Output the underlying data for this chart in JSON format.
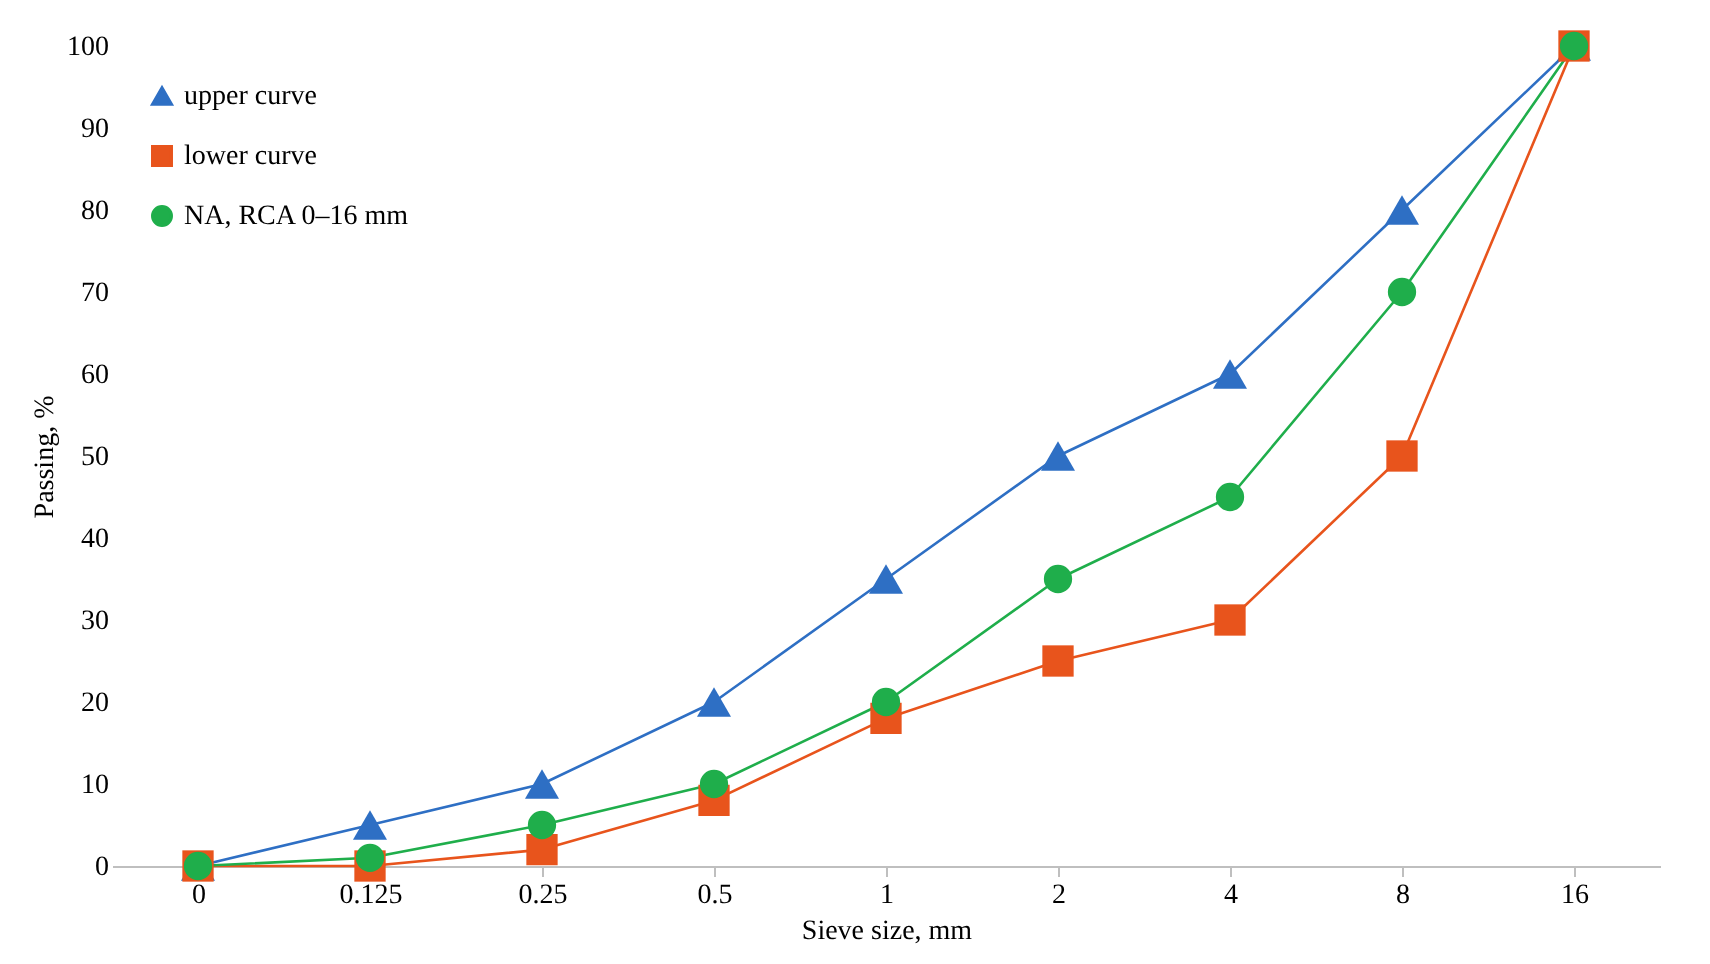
{
  "chart_data": {
    "type": "line",
    "xlabel": "Sieve size, mm",
    "ylabel": "Passing, %",
    "categories": [
      "0",
      "0.125",
      "0.25",
      "0.5",
      "1",
      "2",
      "4",
      "8",
      "16"
    ],
    "series": [
      {
        "name": "upper curve",
        "color": "#2e6fc4",
        "marker": "triangle",
        "values": [
          0,
          5,
          10,
          20,
          35,
          50,
          60,
          80,
          100
        ]
      },
      {
        "name": "lower curve",
        "color": "#e8541c",
        "marker": "square",
        "values": [
          0,
          0,
          2,
          8,
          18,
          25,
          30,
          50,
          100
        ]
      },
      {
        "name": "NA, RCA 0–16 mm",
        "color": "#1fae4b",
        "marker": "circle",
        "values": [
          0,
          1,
          5,
          10,
          20,
          35,
          45,
          70,
          100
        ]
      }
    ],
    "ylim": [
      0,
      100
    ],
    "yticks": [
      0,
      10,
      20,
      30,
      40,
      50,
      60,
      70,
      80,
      90,
      100
    ],
    "grid": false,
    "legend": "top left",
    "line_style": "solid"
  }
}
